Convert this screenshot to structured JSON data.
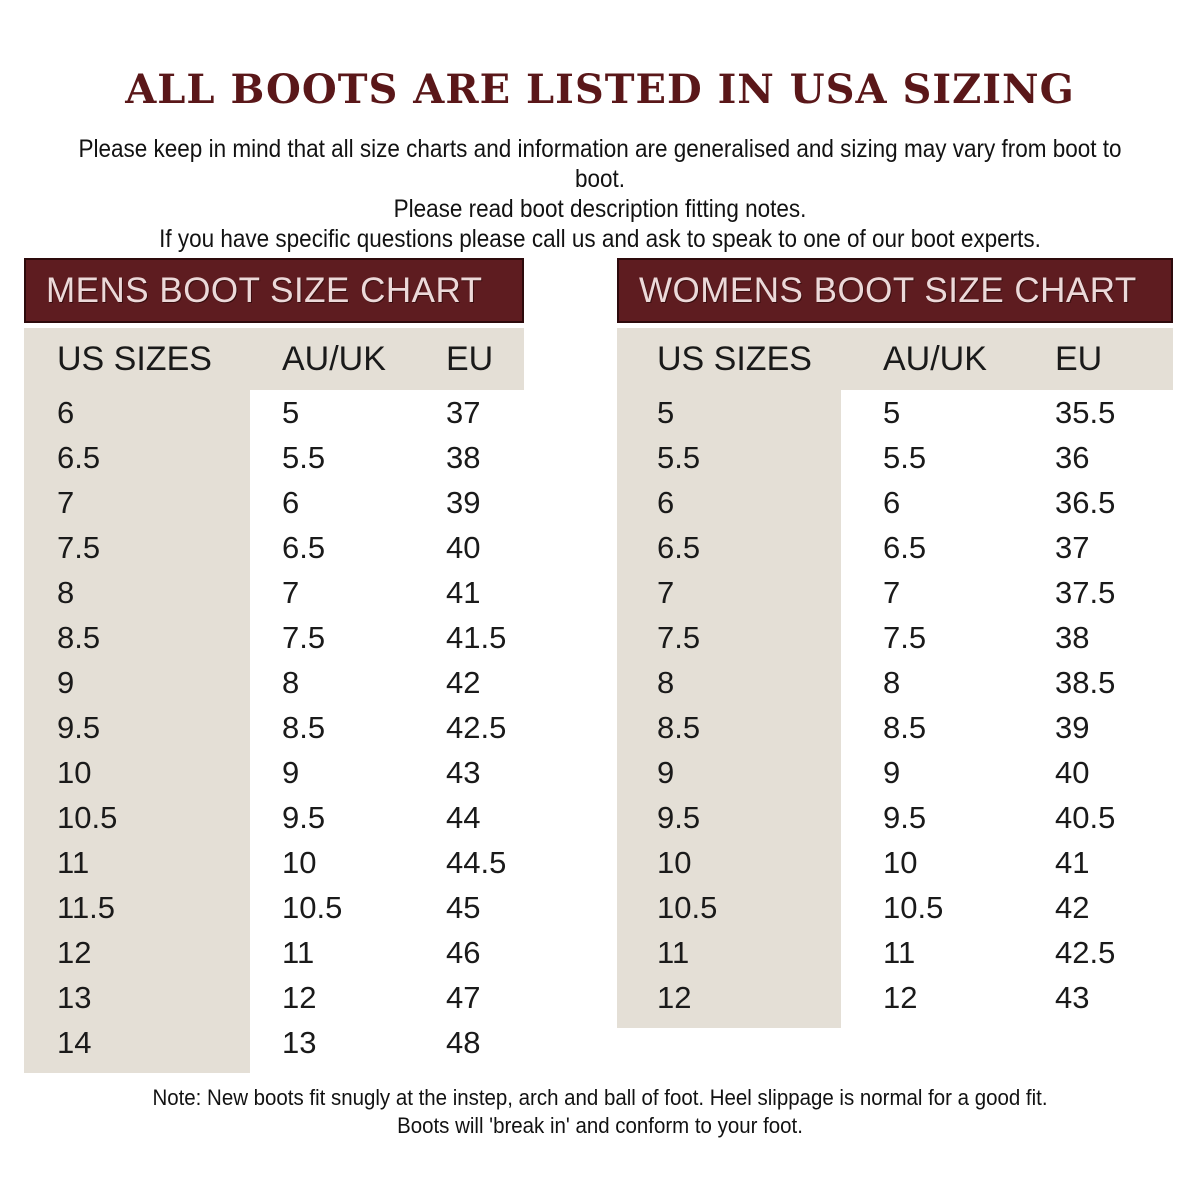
{
  "header": {
    "title": "ALL BOOTS ARE LISTED IN USA SIZING",
    "intro_lines": [
      "Please keep in mind that all size charts and information are generalised and sizing may vary from boot to boot.",
      "Please read boot description fitting notes.",
      "If you have specific questions please call us and ask to speak to one of our boot experts."
    ]
  },
  "mens_table": {
    "title": "MENS BOOT SIZE CHART",
    "columns": [
      "US SIZES",
      "AU/UK",
      "EU"
    ],
    "rows": [
      [
        "6",
        "5",
        "37"
      ],
      [
        "6.5",
        "5.5",
        "38"
      ],
      [
        "7",
        "6",
        "39"
      ],
      [
        "7.5",
        "6.5",
        "40"
      ],
      [
        "8",
        "7",
        "41"
      ],
      [
        "8.5",
        "7.5",
        "41.5"
      ],
      [
        "9",
        "8",
        "42"
      ],
      [
        "9.5",
        "8.5",
        "42.5"
      ],
      [
        "10",
        "9",
        "43"
      ],
      [
        "10.5",
        "9.5",
        "44"
      ],
      [
        "11",
        "10",
        "44.5"
      ],
      [
        "11.5",
        "10.5",
        "45"
      ],
      [
        "12",
        "11",
        "46"
      ],
      [
        "13",
        "12",
        "47"
      ],
      [
        "14",
        "13",
        "48"
      ]
    ]
  },
  "womens_table": {
    "title": "WOMENS BOOT SIZE CHART",
    "columns": [
      "US SIZES",
      "AU/UK",
      "EU"
    ],
    "rows": [
      [
        "5",
        "5",
        "35.5"
      ],
      [
        "5.5",
        "5.5",
        "36"
      ],
      [
        "6",
        "6",
        "36.5"
      ],
      [
        "6.5",
        "6.5",
        "37"
      ],
      [
        "7",
        "7",
        "37.5"
      ],
      [
        "7.5",
        "7.5",
        "38"
      ],
      [
        "8",
        "8",
        "38.5"
      ],
      [
        "8.5",
        "8.5",
        "39"
      ],
      [
        "9",
        "9",
        "40"
      ],
      [
        "9.5",
        "9.5",
        "40.5"
      ],
      [
        "10",
        "10",
        "41"
      ],
      [
        "10.5",
        "10.5",
        "42"
      ],
      [
        "11",
        "11",
        "42.5"
      ],
      [
        "12",
        "12",
        "43"
      ]
    ]
  },
  "footer": {
    "note_lines": [
      "Note: New boots fit snugly at the instep, arch and ball of foot. Heel slippage is normal for a good fit.",
      "Boots will 'break in' and conform to your foot."
    ]
  },
  "colors": {
    "maroon_bar": "#5e1c20",
    "maroon_bar_border": "#2d0a0c",
    "bar_text": "#ecd9d9",
    "title_text": "#5a1719",
    "beige": "#e4dfd6",
    "body_text": "#1a1a1a"
  }
}
